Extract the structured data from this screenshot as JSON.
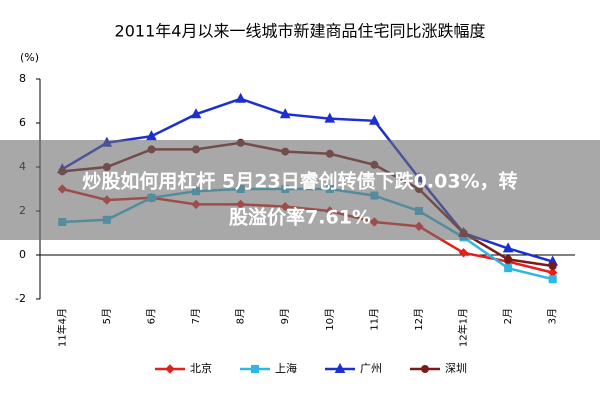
{
  "chart_data": {
    "type": "line",
    "title": "2011年4月以来一线城市新建商品住宅同比涨跌幅度",
    "y_label": "(%)",
    "categories": [
      "11年4月",
      "5月",
      "6月",
      "7月",
      "8月",
      "9月",
      "10月",
      "11月",
      "12月",
      "12年1月",
      "2月",
      "3月"
    ],
    "series": [
      {
        "name": "北京",
        "color": "#e3201b",
        "marker": "diamond",
        "values": [
          3.0,
          2.5,
          2.6,
          2.3,
          2.3,
          2.2,
          2.0,
          1.5,
          1.3,
          0.1,
          -0.3,
          -0.8
        ]
      },
      {
        "name": "上海",
        "color": "#2fb7e3",
        "marker": "square",
        "values": [
          1.5,
          1.6,
          2.6,
          2.9,
          3.0,
          3.0,
          3.0,
          2.7,
          2.0,
          0.8,
          -0.6,
          -1.1
        ]
      },
      {
        "name": "广州",
        "color": "#1c2fd1",
        "marker": "triangle",
        "values": [
          3.9,
          5.1,
          5.4,
          6.4,
          7.1,
          6.4,
          6.2,
          6.1,
          3.5,
          1.0,
          0.3,
          -0.3
        ]
      },
      {
        "name": "深圳",
        "color": "#7b1a1a",
        "marker": "circle",
        "values": [
          3.8,
          4.0,
          4.8,
          4.8,
          5.1,
          4.7,
          4.6,
          4.1,
          3.0,
          1.0,
          -0.2,
          -0.5
        ]
      }
    ],
    "ylim": [
      -2,
      8
    ],
    "yticks": [
      -2,
      0,
      2,
      4,
      6,
      8
    ],
    "grid": false
  },
  "overlay": {
    "lines": [
      "炒股如何用杠杆 5月23日睿创转债下跌0.03%，转",
      "股溢价率7.61%"
    ]
  }
}
